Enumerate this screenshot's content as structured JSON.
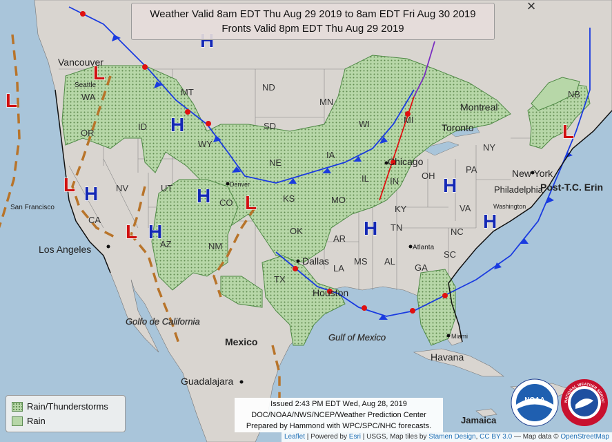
{
  "title": {
    "line1": "Weather Valid 8am EDT Thu Aug 29 2019 to 8am EDT Fri Aug 30 2019",
    "line2": "Fronts Valid 8pm EDT Thu Aug 29 2019"
  },
  "close_symbol": "×",
  "legend": {
    "items": [
      {
        "label": "Rain/Thunderstorms",
        "pattern": "stippled"
      },
      {
        "label": "Rain",
        "pattern": "solid"
      }
    ]
  },
  "issued": {
    "line1": "Issued 2:43 PM EDT Wed, Aug 28, 2019",
    "line2": "DOC/NOAA/NWS/NCEP/Weather Prediction Center",
    "line3": "Prepared by Hammond with WPC/SPC/NHC forecasts."
  },
  "attribution": {
    "leaflet": "Leaflet",
    "powered_by": " | Powered by ",
    "esri": "Esri",
    "usgs": " | USGS, Map tiles by ",
    "stamen": "Stamen Design",
    "sep": ", ",
    "ccby": "CC BY 3.0",
    "mapdata": " — Map data © ",
    "osm": "OpenStreetMap"
  },
  "logos": {
    "noaa": "NOAA",
    "nws": "NATIONAL WEATHER SERVICE"
  },
  "cities": {
    "vancouver": "Vancouver",
    "seattle": "Seattle",
    "san_francisco": "San Francisco",
    "los_angeles": "Los Angeles",
    "denver": "Denver",
    "dallas": "Dallas",
    "houston": "Houston",
    "atlanta": "Atlanta",
    "chicago": "Chicago",
    "toronto": "Toronto",
    "montreal": "Montreal",
    "new_york": "New York",
    "philadelphia": "Philadelphia",
    "washington": "Washington",
    "miami": "Miami",
    "havana": "Havana",
    "mexico": "Mexico",
    "guadalajara": "Guadalajara",
    "jamaica": "Jamaica",
    "golfo": "Golfo de California",
    "gulf": "Gulf of Mexico",
    "tc": "Post-T.C. Erin"
  },
  "states": {
    "wa": "WA",
    "or": "OR",
    "ca": "CA",
    "nv": "NV",
    "id": "ID",
    "mt": "MT",
    "wy": "WY",
    "ut": "UT",
    "co": "CO",
    "az": "AZ",
    "nm": "NM",
    "nd": "ND",
    "sd": "SD",
    "ne": "NE",
    "ks": "KS",
    "ok": "OK",
    "tx": "TX",
    "mn": "MN",
    "ia": "IA",
    "mo": "MO",
    "ar": "AR",
    "la": "LA",
    "wi": "WI",
    "il": "IL",
    "in": "IN",
    "mi": "MI",
    "oh": "OH",
    "ky": "KY",
    "tn": "TN",
    "ms": "MS",
    "al": "AL",
    "ga": "GA",
    "sc": "SC",
    "nc": "NC",
    "va": "VA",
    "pa": "PA",
    "ny": "NY",
    "nb": "NB"
  },
  "pressure": {
    "high": "H",
    "low": "L"
  },
  "colors": {
    "water": "#a9c5da",
    "land": "#d9d5d0",
    "precip": "#b7d7a8",
    "stipple": "#5f8a4f",
    "high": "#1428b4",
    "low": "#d01010",
    "cold_front": "#1a3be0",
    "warm_front": "#e01010",
    "occluded": "#7a2fc0",
    "trough": "#b8742a"
  }
}
